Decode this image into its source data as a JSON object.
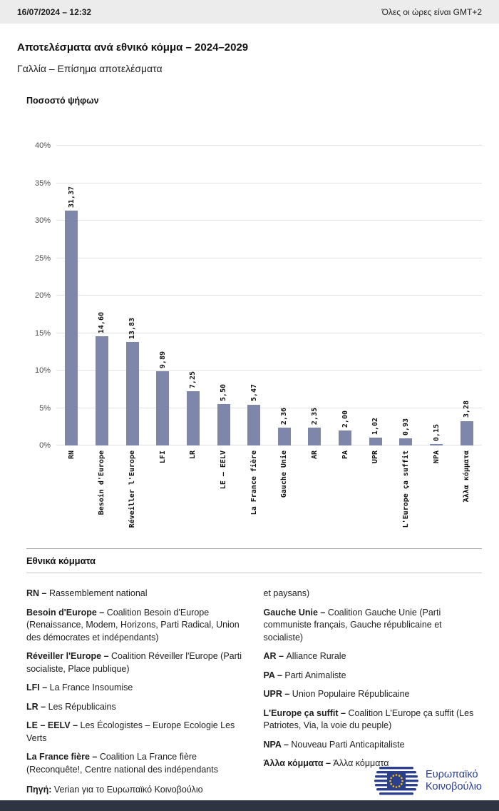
{
  "colors": {
    "bar": "#7e86aa",
    "topbar_bg": "#ececec",
    "bottombar_bg": "#2e3442",
    "logo_navy": "#2b3f8c",
    "star_yellow": "#f5c400"
  },
  "topbar": {
    "datetime": "16/07/2024 – 12:32",
    "timezone": "Όλες οι ώρες είναι GMT+2"
  },
  "page": {
    "title": "Αποτελέσματα ανά εθνικό κόμμα – 2024–2029",
    "subtitle": "Γαλλία – Επίσημα αποτελέσματα"
  },
  "chart_data": {
    "type": "bar",
    "title": "Ποσοστό ψήφων",
    "categories": [
      "RN",
      "Besoin d'Europe",
      "Réveiller l'Europe",
      "LFI",
      "LR",
      "LE – EELV",
      "La France fière",
      "Gauche Unie",
      "AR",
      "PA",
      "UPR",
      "L'Europe ça suffit",
      "NPA",
      "Άλλα κόμματα"
    ],
    "values": [
      31.37,
      14.6,
      13.83,
      9.89,
      7.25,
      5.5,
      5.47,
      2.36,
      2.35,
      2.0,
      1.02,
      0.93,
      0.15,
      3.28
    ],
    "value_labels": [
      "31,37",
      "14,60",
      "13,83",
      "9,89",
      "7,25",
      "5,50",
      "5,47",
      "2,36",
      "2,35",
      "2,00",
      "1,02",
      "0,93",
      "0,15",
      "3,28"
    ],
    "xlabel": "",
    "ylabel": "Ποσοστό ψήφων",
    "ylim": [
      0,
      40
    ],
    "ytick_step": 5,
    "ytick_labels": [
      "0%",
      "5%",
      "10%",
      "15%",
      "20%",
      "25%",
      "30%",
      "35%",
      "40%"
    ],
    "grid": true,
    "legend_position": "none",
    "bar_color": "#7e86aa"
  },
  "legend": {
    "heading": "Εθνικά κόμματα",
    "columns": [
      [
        {
          "term": "RN –",
          "desc": "Rassemblement national"
        },
        {
          "term": "Besoin d'Europe –",
          "desc": "Coalition Besoin d'Europe (Renaissance, Modem, Horizons, Parti Radical, Union des démocrates et indépendants)"
        },
        {
          "term": "Réveiller l'Europe –",
          "desc": "Coalition Réveiller l'Europe (Parti socialiste, Place publique)"
        },
        {
          "term": "LFI –",
          "desc": "La France Insoumise"
        },
        {
          "term": "LR –",
          "desc": "Les Républicains"
        },
        {
          "term": "LE – EELV –",
          "desc": "Les Écologistes – Europe Ecologie Les Verts"
        },
        {
          "term": "La France fière –",
          "desc": "Coalition La France fière (Reconquête!, Centre national des indépendants"
        }
      ],
      [
        {
          "term": "",
          "desc": "et paysans)"
        },
        {
          "term": "Gauche Unie –",
          "desc": "Coalition Gauche Unie (Parti communiste français, Gauche républicaine et socialiste)"
        },
        {
          "term": "AR –",
          "desc": "Alliance Rurale"
        },
        {
          "term": "PA –",
          "desc": "Parti Animaliste"
        },
        {
          "term": "UPR –",
          "desc": "Union Populaire Républicaine"
        },
        {
          "term": "L'Europe ça suffit –",
          "desc": "Coalition L'Europe ça suffit (Les Patriotes, Via, la voie du peuple)"
        },
        {
          "term": "NPA –",
          "desc": "Nouveau Parti Anticapitaliste"
        },
        {
          "term": "Άλλα κόμματα –",
          "desc": "Άλλα κόμματα"
        }
      ]
    ]
  },
  "footer": {
    "source_label": "Πηγή:",
    "source_text": " Verian για το Ευρωπαϊκό Κοινοβούλιο",
    "logo_line1": "Ευρωπαϊκό",
    "logo_line2": "Κοινοβούλιο"
  }
}
